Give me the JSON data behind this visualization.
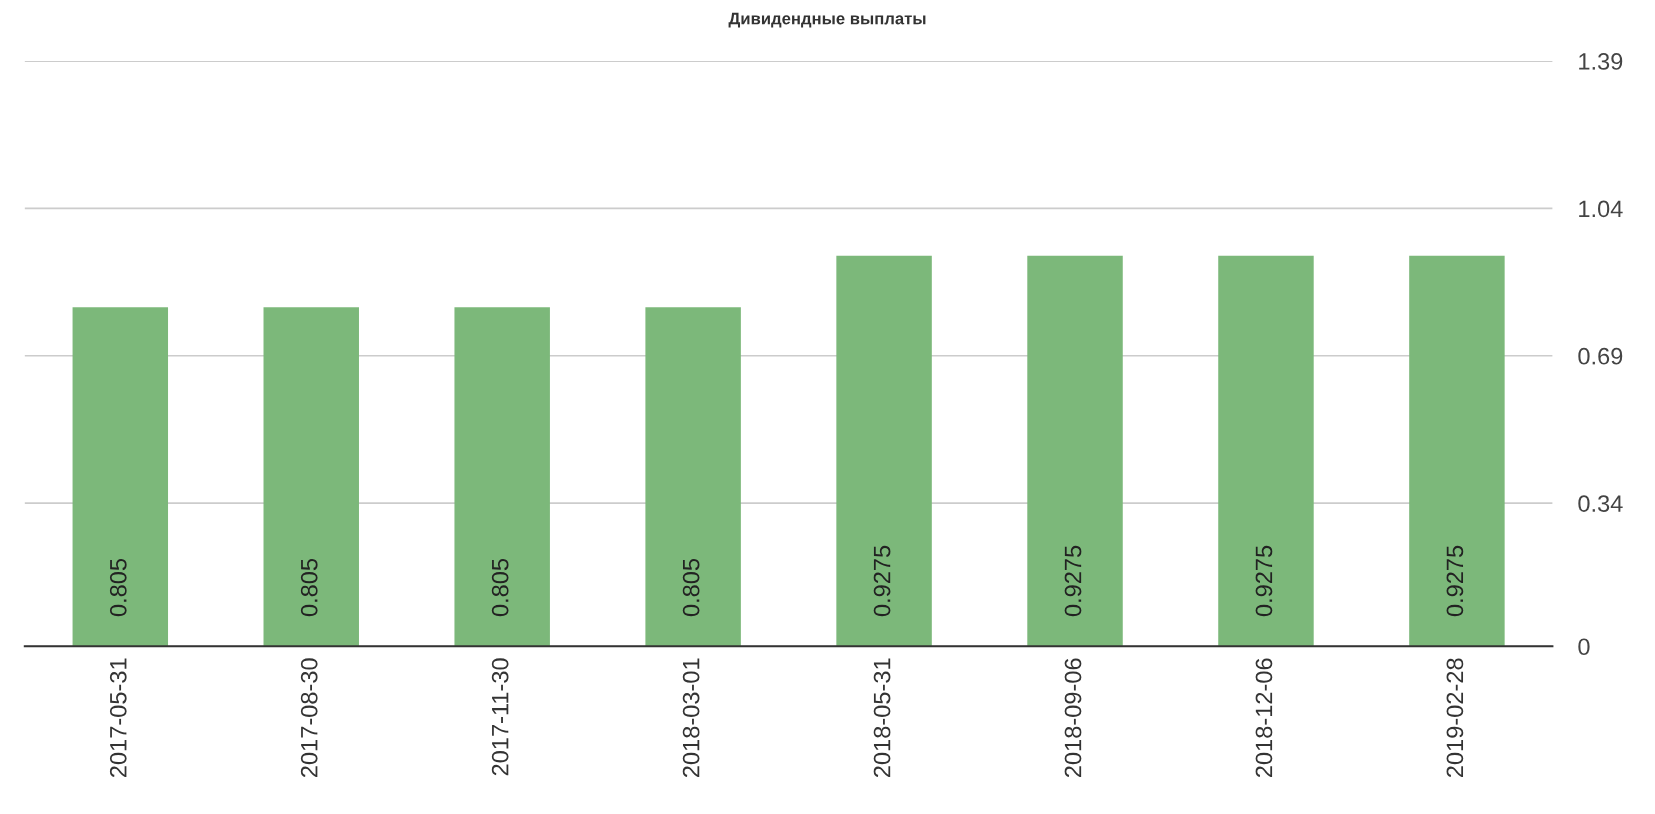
{
  "chart_data": {
    "type": "bar",
    "title": "Дивидендные выплаты",
    "categories": [
      "2017-05-31",
      "2017-08-30",
      "2017-11-30",
      "2018-03-01",
      "2018-05-31",
      "2018-09-06",
      "2018-12-06",
      "2019-02-28"
    ],
    "values": [
      0.805,
      0.805,
      0.805,
      0.805,
      0.9275,
      0.9275,
      0.9275,
      0.9275
    ],
    "color": "#7cb87a",
    "ylim": [
      0,
      1.39
    ],
    "yticks": [
      0,
      0.34,
      0.69,
      1.04,
      1.39
    ],
    "grid": "y",
    "data_labels": true,
    "legend": false
  }
}
